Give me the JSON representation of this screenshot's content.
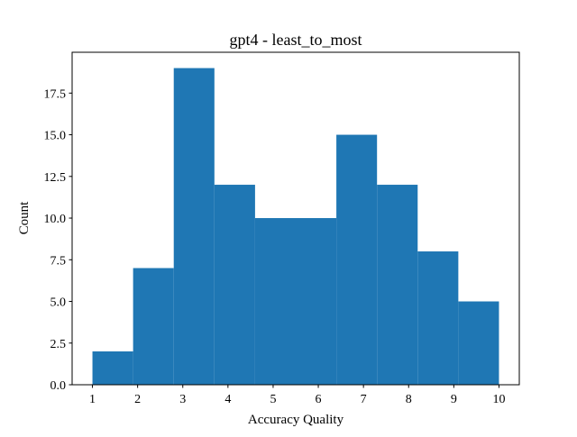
{
  "chart_data": {
    "type": "bar",
    "title": "gpt4 - least_to_most",
    "xlabel": "Accuracy Quality",
    "ylabel": "Count",
    "bins": [
      {
        "start": 1.0,
        "end": 1.9,
        "count": 2
      },
      {
        "start": 1.9,
        "end": 2.8,
        "count": 7
      },
      {
        "start": 2.8,
        "end": 3.7,
        "count": 19
      },
      {
        "start": 3.7,
        "end": 4.6,
        "count": 12
      },
      {
        "start": 4.6,
        "end": 5.5,
        "count": 10
      },
      {
        "start": 5.5,
        "end": 6.4,
        "count": 10
      },
      {
        "start": 6.4,
        "end": 7.3,
        "count": 15
      },
      {
        "start": 7.3,
        "end": 8.2,
        "count": 12
      },
      {
        "start": 8.2,
        "end": 9.1,
        "count": 8
      },
      {
        "start": 9.1,
        "end": 10.0,
        "count": 5
      }
    ],
    "xlim": [
      0.55,
      10.45
    ],
    "ylim": [
      0,
      19.95
    ],
    "xticks": [
      1,
      2,
      3,
      4,
      5,
      6,
      7,
      8,
      9,
      10
    ],
    "xtick_labels": [
      "1",
      "2",
      "3",
      "4",
      "5",
      "6",
      "7",
      "8",
      "9",
      "10"
    ],
    "yticks": [
      0,
      2.5,
      5,
      7.5,
      10,
      12.5,
      15,
      17.5
    ],
    "ytick_labels": [
      "0.0",
      "2.5",
      "5.0",
      "7.5",
      "10.0",
      "12.5",
      "15.0",
      "17.5"
    ],
    "bar_color": "#1f77b4",
    "grid": false,
    "legend": "none"
  }
}
